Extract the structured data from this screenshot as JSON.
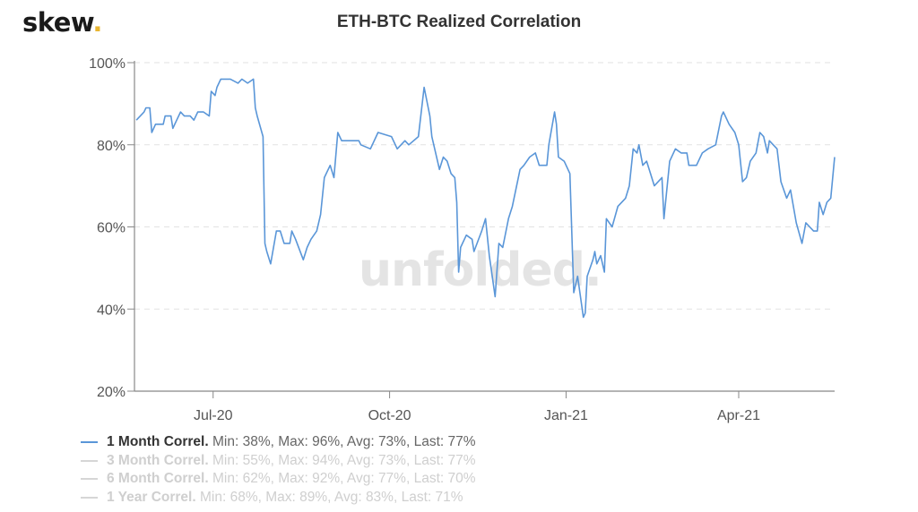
{
  "brand": {
    "logo_text": "skew",
    "logo_dot": ".",
    "dot_color": "#e8b530"
  },
  "watermark": "unfolded.",
  "chart_data": {
    "type": "line",
    "title": "ETH-BTC Realized Correlation",
    "xlabel": "",
    "ylabel": "",
    "xlim": [
      "2020-05-21",
      "2021-05-21"
    ],
    "ylim": [
      20,
      100
    ],
    "y_ticks": [
      20,
      40,
      60,
      80,
      100
    ],
    "y_tick_labels": [
      "20%",
      "40%",
      "60%",
      "80%",
      "100%"
    ],
    "x_ticks": [
      "2020-07-01",
      "2020-10-01",
      "2021-01-01",
      "2021-04-01"
    ],
    "x_tick_labels": [
      "Jul-20",
      "Oct-20",
      "Jan-21",
      "Apr-21"
    ],
    "grid": {
      "horizontal": true,
      "style": "dashed"
    },
    "legend_placement": "bottom-left",
    "series": [
      {
        "name": "1 Month Correl",
        "stats": "Min: 38%, Max: 96%, Avg: 73%, Last: 77%",
        "visible": true,
        "color": "#5a96d8",
        "x": [
          "2020-05-22",
          "2020-05-26",
          "2020-05-27",
          "2020-05-29",
          "2020-05-30",
          "2020-06-01",
          "2020-06-05",
          "2020-06-06",
          "2020-06-09",
          "2020-06-10",
          "2020-06-12",
          "2020-06-14",
          "2020-06-16",
          "2020-06-19",
          "2020-06-21",
          "2020-06-23",
          "2020-06-26",
          "2020-06-29",
          "2020-06-30",
          "2020-07-02",
          "2020-07-03",
          "2020-07-05",
          "2020-07-10",
          "2020-07-14",
          "2020-07-16",
          "2020-07-19",
          "2020-07-22",
          "2020-07-23",
          "2020-07-24",
          "2020-07-27",
          "2020-07-28",
          "2020-07-29",
          "2020-07-31",
          "2020-08-03",
          "2020-08-05",
          "2020-08-07",
          "2020-08-10",
          "2020-08-11",
          "2020-08-13",
          "2020-08-17",
          "2020-08-19",
          "2020-08-21",
          "2020-08-24",
          "2020-08-26",
          "2020-08-28",
          "2020-08-31",
          "2020-09-02",
          "2020-09-04",
          "2020-09-06",
          "2020-09-15",
          "2020-09-16",
          "2020-09-21",
          "2020-09-25",
          "2020-10-02",
          "2020-10-05",
          "2020-10-09",
          "2020-10-11",
          "2020-10-16",
          "2020-10-19",
          "2020-10-22",
          "2020-10-23",
          "2020-10-27",
          "2020-10-29",
          "2020-10-31",
          "2020-11-02",
          "2020-11-04",
          "2020-11-05",
          "2020-11-06",
          "2020-11-07",
          "2020-11-10",
          "2020-11-13",
          "2020-11-14",
          "2020-11-18",
          "2020-11-20",
          "2020-11-22",
          "2020-11-25",
          "2020-11-27",
          "2020-11-29",
          "2020-12-02",
          "2020-12-04",
          "2020-12-08",
          "2020-12-10",
          "2020-12-13",
          "2020-12-16",
          "2020-12-18",
          "2020-12-22",
          "2020-12-23",
          "2020-12-26",
          "2020-12-27",
          "2020-12-28",
          "2020-12-31",
          "2021-01-03",
          "2021-01-05",
          "2021-01-07",
          "2021-01-10",
          "2021-01-11",
          "2021-01-12",
          "2021-01-15",
          "2021-01-16",
          "2021-01-17",
          "2021-01-19",
          "2021-01-21",
          "2021-01-22",
          "2021-01-25",
          "2021-01-28",
          "2021-02-01",
          "2021-02-03",
          "2021-02-05",
          "2021-02-07",
          "2021-02-08",
          "2021-02-10",
          "2021-02-12",
          "2021-02-16",
          "2021-02-20",
          "2021-02-21",
          "2021-02-24",
          "2021-02-27",
          "2021-03-02",
          "2021-03-05",
          "2021-03-06",
          "2021-03-10",
          "2021-03-13",
          "2021-03-16",
          "2021-03-20",
          "2021-03-23",
          "2021-03-24",
          "2021-03-27",
          "2021-03-30",
          "2021-04-01",
          "2021-04-03",
          "2021-04-05",
          "2021-04-07",
          "2021-04-10",
          "2021-04-12",
          "2021-04-14",
          "2021-04-16",
          "2021-04-17",
          "2021-04-21",
          "2021-04-23",
          "2021-04-26",
          "2021-04-28",
          "2021-05-01",
          "2021-05-04",
          "2021-05-06",
          "2021-05-10",
          "2021-05-12",
          "2021-05-13",
          "2021-05-15",
          "2021-05-17",
          "2021-05-19",
          "2021-05-21"
        ],
        "values": [
          86,
          88,
          89,
          89,
          83,
          85,
          85,
          87,
          87,
          84,
          86,
          88,
          87,
          87,
          86,
          88,
          88,
          87,
          93,
          92,
          94,
          96,
          96,
          95,
          96,
          95,
          96,
          89,
          87,
          82,
          56,
          54,
          51,
          59,
          59,
          56,
          56,
          59,
          57,
          52,
          55,
          57,
          59,
          63,
          72,
          75,
          72,
          83,
          81,
          81,
          80,
          79,
          83,
          82,
          79,
          81,
          80,
          82,
          94,
          87,
          82,
          74,
          77,
          76,
          73,
          72,
          66,
          49,
          55,
          58,
          57,
          54,
          59,
          62,
          53,
          43,
          56,
          55,
          62,
          65,
          74,
          75,
          77,
          78,
          75,
          75,
          80,
          88,
          85,
          77,
          76,
          73,
          44,
          48,
          38,
          39,
          48,
          52,
          54,
          51,
          53,
          49,
          62,
          60,
          65,
          67,
          70,
          79,
          78,
          80,
          75,
          76,
          70,
          72,
          62,
          76,
          79,
          78,
          78,
          75,
          75,
          78,
          79,
          80,
          87,
          88,
          85,
          83,
          80,
          71,
          72,
          76,
          78,
          83,
          82,
          78,
          81,
          79,
          71,
          67,
          69,
          61,
          56,
          61,
          59,
          59,
          66,
          63,
          66,
          67,
          77
        ]
      },
      {
        "name": "3 Month Correl",
        "stats": "Min: 55%, Max: 94%, Avg: 73%, Last: 77%",
        "visible": false
      },
      {
        "name": "6 Month Correl",
        "stats": "Min: 62%, Max: 92%, Avg: 77%, Last: 70%",
        "visible": false
      },
      {
        "name": "1 Year Correl",
        "stats": "Min: 68%, Max: 89%, Avg: 83%, Last: 71%",
        "visible": false
      }
    ]
  }
}
